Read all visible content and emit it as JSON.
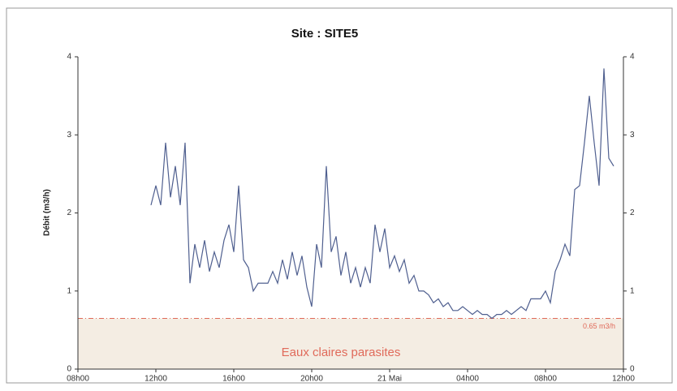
{
  "chart_data": {
    "type": "line",
    "title": "Site :  SITE5",
    "y_label": "Débit  (m3/h)",
    "x": [
      11.75,
      12,
      12.25,
      12.5,
      12.75,
      13,
      13.25,
      13.5,
      13.75,
      14,
      14.25,
      14.5,
      14.75,
      15,
      15.25,
      15.5,
      15.75,
      16,
      16.25,
      16.5,
      16.75,
      17,
      17.25,
      17.5,
      17.75,
      18,
      18.25,
      18.5,
      18.75,
      19,
      19.25,
      19.5,
      19.75,
      20,
      20.25,
      20.5,
      20.75,
      21,
      21.25,
      21.5,
      21.75,
      22,
      22.25,
      22.5,
      22.75,
      23,
      23.25,
      23.5,
      23.75,
      24,
      24.25,
      24.5,
      24.75,
      25,
      25.25,
      25.5,
      25.75,
      26,
      26.25,
      26.5,
      26.75,
      27,
      27.25,
      27.5,
      27.75,
      28,
      28.25,
      28.5,
      28.75,
      29,
      29.25,
      29.5,
      29.75,
      30,
      30.25,
      30.5,
      30.75,
      31,
      31.25,
      31.5,
      31.75,
      32,
      32.25,
      32.5,
      32.75,
      33,
      33.25,
      33.5,
      33.75,
      34,
      34.25,
      34.5,
      34.75,
      35,
      35.25,
      35.5
    ],
    "series": [
      {
        "name": "Débit",
        "color": "#4f5f8f",
        "values": [
          2.1,
          2.35,
          2.1,
          2.9,
          2.2,
          2.6,
          2.1,
          2.9,
          1.1,
          1.6,
          1.3,
          1.65,
          1.25,
          1.5,
          1.3,
          1.65,
          1.85,
          1.5,
          2.35,
          1.4,
          1.3,
          1.0,
          1.1,
          1.1,
          1.1,
          1.25,
          1.1,
          1.4,
          1.15,
          1.5,
          1.2,
          1.45,
          1.05,
          0.8,
          1.6,
          1.3,
          2.6,
          1.5,
          1.7,
          1.2,
          1.5,
          1.1,
          1.3,
          1.05,
          1.3,
          1.1,
          1.85,
          1.5,
          1.8,
          1.3,
          1.45,
          1.25,
          1.4,
          1.1,
          1.2,
          1.0,
          1.0,
          0.95,
          0.85,
          0.9,
          0.8,
          0.85,
          0.75,
          0.75,
          0.8,
          0.75,
          0.7,
          0.75,
          0.7,
          0.7,
          0.65,
          0.7,
          0.7,
          0.75,
          0.7,
          0.75,
          0.8,
          0.75,
          0.9,
          0.9,
          0.9,
          1.0,
          0.85,
          1.25,
          1.4,
          1.6,
          1.45,
          2.3,
          2.35,
          2.9,
          3.5,
          2.9,
          2.35,
          3.85,
          2.7,
          2.6
        ]
      }
    ],
    "threshold": {
      "value": 0.65,
      "label": "0.65 m3/h",
      "color": "#e06a5a",
      "zone_label": "Eaux claires parasites",
      "zone_color": "#f4ede3"
    },
    "xlim": [
      8,
      36
    ],
    "xticks": [
      {
        "value": 8,
        "label": "08h00"
      },
      {
        "value": 12,
        "label": "12h00"
      },
      {
        "value": 16,
        "label": "16h00"
      },
      {
        "value": 20,
        "label": "20h00"
      },
      {
        "value": 24,
        "label": "21 Mai"
      },
      {
        "value": 28,
        "label": "04h00"
      },
      {
        "value": 32,
        "label": "08h00"
      },
      {
        "value": 36,
        "label": "12h00"
      }
    ],
    "ylim": [
      0,
      4
    ],
    "yticks": [
      0,
      1,
      2,
      3,
      4
    ],
    "y2lim": [
      0,
      4
    ],
    "y2ticks": [
      0,
      1,
      2,
      3,
      4
    ]
  }
}
